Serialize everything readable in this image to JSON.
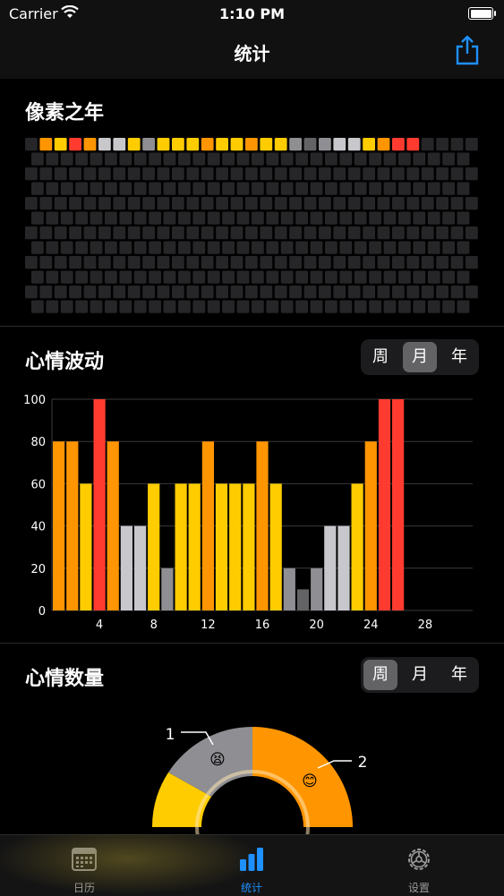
{
  "status_bar": {
    "carrier": "Carrier",
    "time": "1:10 PM"
  },
  "nav": {
    "title": "统计",
    "share_icon": "share-icon"
  },
  "pixel_year": {
    "title": "像素之年",
    "first_row": [
      "#ff9500",
      "#ffcc00",
      "#ff3b30",
      "#ff9500",
      "#c7c7cc",
      "#c7c7cc",
      "#ffcc00",
      "#8e8e93",
      "#ffcc00",
      "#ffcc00",
      "#ffcc00",
      "#ff9500",
      "#ffcc00",
      "#ffcc00",
      "#ff9500",
      "#ffcc00",
      "#ffcc00",
      "#8e8e93",
      "#636366",
      "#8e8e93",
      "#c7c7cc",
      "#c7c7cc",
      "#ffcc00",
      "#ff9500",
      "#ff3b30",
      "#ff3b30"
    ],
    "empty_color": "#262628",
    "filled_offset_days": 1
  },
  "mood_trend": {
    "title": "心情波动",
    "segment": {
      "options": [
        "周",
        "月",
        "年"
      ],
      "selected": 1
    }
  },
  "mood_count": {
    "title": "心情数量",
    "segment": {
      "options": [
        "周",
        "月",
        "年"
      ],
      "selected": 0
    },
    "labels": [
      {
        "count": "1",
        "emoji": "😫"
      },
      {
        "count": "2",
        "emoji": "😊"
      }
    ]
  },
  "chart_data": {
    "type": "bar",
    "x": [
      1,
      2,
      3,
      4,
      5,
      6,
      7,
      8,
      9,
      10,
      11,
      12,
      13,
      14,
      15,
      16,
      17,
      18,
      19,
      20,
      21,
      22,
      23,
      24,
      25,
      26
    ],
    "values": [
      80,
      80,
      60,
      100,
      80,
      40,
      40,
      60,
      20,
      60,
      60,
      80,
      60,
      60,
      60,
      80,
      60,
      20,
      10,
      20,
      40,
      40,
      60,
      80,
      100,
      100
    ],
    "colors": [
      "#ff9500",
      "#ff9500",
      "#ffcc00",
      "#ff3b30",
      "#ff9500",
      "#c7c7cc",
      "#c7c7cc",
      "#ffcc00",
      "#8e8e93",
      "#ffcc00",
      "#ffcc00",
      "#ff9500",
      "#ffcc00",
      "#ffcc00",
      "#ffcc00",
      "#ff9500",
      "#ffcc00",
      "#8e8e93",
      "#636366",
      "#8e8e93",
      "#c7c7cc",
      "#c7c7cc",
      "#ffcc00",
      "#ff9500",
      "#ff3b30",
      "#ff3b30"
    ],
    "xlim": [
      0,
      31
    ],
    "ylim": [
      0,
      100
    ],
    "xticks": [
      4,
      8,
      12,
      16,
      20,
      24,
      28
    ],
    "yticks": [
      0,
      20,
      40,
      60,
      80,
      100
    ],
    "grid": true
  },
  "donut_data": {
    "type": "pie",
    "slices": [
      {
        "emoji": "😫",
        "count": 1,
        "color": "#8e8e93"
      },
      {
        "emoji": "😊",
        "count": 2,
        "color": "#ff9500"
      },
      {
        "color": "#ffcc00"
      }
    ]
  },
  "tabbar": {
    "items": [
      {
        "label": "日历",
        "icon": "calendar-icon"
      },
      {
        "label": "统计",
        "icon": "bar-chart-icon",
        "active": true
      },
      {
        "label": "设置",
        "icon": "gear-icon"
      }
    ]
  }
}
